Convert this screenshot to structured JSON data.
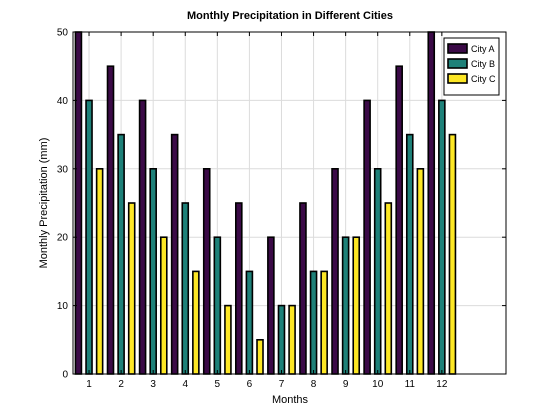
{
  "chart_data": {
    "type": "bar",
    "title": "Monthly Precipitation in Different Cities",
    "xlabel": "Months",
    "ylabel": "Monthly Precipitation (mm)",
    "categories": [
      "1",
      "2",
      "3",
      "4",
      "5",
      "6",
      "7",
      "8",
      "9",
      "10",
      "11",
      "12"
    ],
    "ylim": [
      0,
      50
    ],
    "yticks": [
      0,
      10,
      20,
      30,
      40,
      50
    ],
    "grid": true,
    "legend_position": "top-right",
    "series": [
      {
        "name": "City A",
        "color": "#3b0a47",
        "values": [
          50,
          45,
          40,
          35,
          30,
          25,
          20,
          25,
          30,
          40,
          45,
          50
        ]
      },
      {
        "name": "City B",
        "color": "#1e8179",
        "values": [
          40,
          35,
          30,
          25,
          20,
          15,
          10,
          15,
          20,
          30,
          35,
          40
        ]
      },
      {
        "name": "City C",
        "color": "#fde725",
        "values": [
          30,
          25,
          20,
          15,
          10,
          5,
          10,
          15,
          20,
          25,
          30,
          35
        ]
      }
    ]
  }
}
